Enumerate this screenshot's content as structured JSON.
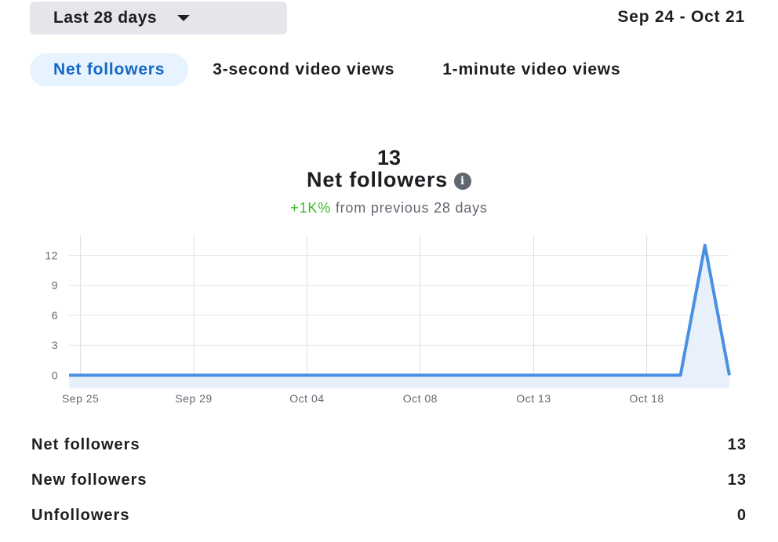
{
  "header": {
    "range_label": "Last 28 days",
    "date_range": "Sep 24 - Oct 21"
  },
  "tabs": [
    {
      "label": "Net followers",
      "active": true
    },
    {
      "label": "3-second video views",
      "active": false
    },
    {
      "label": "1-minute video views",
      "active": false
    }
  ],
  "summary": {
    "value": "13",
    "metric": "Net followers",
    "change": "+1K%",
    "change_suffix": "from previous 28 days"
  },
  "colors": {
    "line": "#4a90e2",
    "fill": "#e7f0fb",
    "positive": "#42b72a",
    "accent": "#1467c7"
  },
  "chart_data": {
    "type": "area",
    "x": [
      "Sep 24",
      "Sep 25",
      "Sep 26",
      "Sep 27",
      "Sep 28",
      "Sep 29",
      "Sep 30",
      "Oct 01",
      "Oct 02",
      "Oct 03",
      "Oct 04",
      "Oct 05",
      "Oct 06",
      "Oct 07",
      "Oct 08",
      "Oct 09",
      "Oct 10",
      "Oct 11",
      "Oct 12",
      "Oct 13",
      "Oct 14",
      "Oct 15",
      "Oct 16",
      "Oct 17",
      "Oct 18",
      "Oct 19",
      "Oct 20",
      "Oct 21"
    ],
    "values": [
      0,
      0,
      0,
      0,
      0,
      0,
      0,
      0,
      0,
      0,
      0,
      0,
      0,
      0,
      0,
      0,
      0,
      0,
      0,
      0,
      0,
      0,
      0,
      0,
      0,
      0,
      13,
      0
    ],
    "x_ticks": [
      "Sep 25",
      "Sep 29",
      "Oct 04",
      "Oct 08",
      "Oct 13",
      "Oct 18"
    ],
    "y_ticks": [
      0,
      3,
      6,
      9,
      12
    ],
    "ylim": [
      -1.3,
      14
    ],
    "grid": true,
    "legend": "none"
  },
  "stats": [
    {
      "label": "Net followers",
      "value": "13"
    },
    {
      "label": "New followers",
      "value": "13"
    },
    {
      "label": "Unfollowers",
      "value": "0"
    }
  ]
}
